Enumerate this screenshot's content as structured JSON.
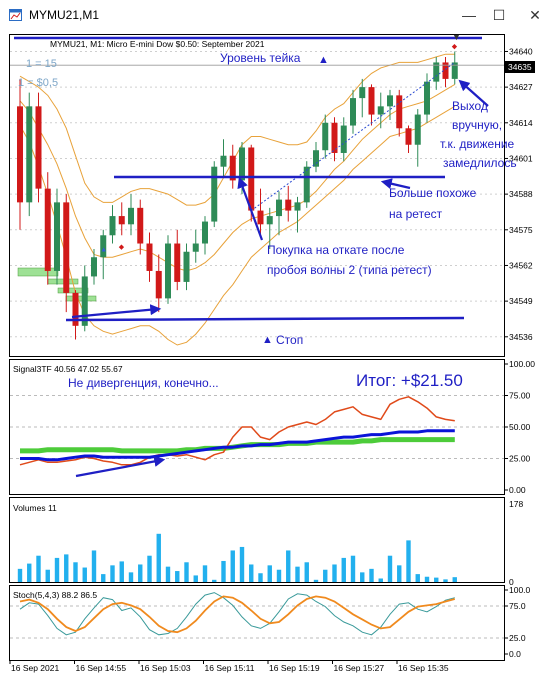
{
  "window": {
    "title": "MYMU21,M1",
    "controls": [
      "minimize-icon",
      "maximize-icon",
      "close-icon"
    ]
  },
  "main_panel": {
    "info": "MYMU21, M1:  Micro E-mini Dow $0.50: September 2021",
    "label_1": "1 = 15",
    "label_2": "1 = $0,5",
    "current_price": "34635",
    "price_ticks": [
      "34640",
      "34627",
      "34614",
      "34601",
      "34588",
      "34575",
      "34562",
      "34549",
      "34536"
    ],
    "annotations": {
      "take_level": "Уровень тейка",
      "exit_line1": "Выход",
      "exit_line2": "вручную,",
      "exit_line3": "т.к. движение",
      "exit_line4": "замедлилось",
      "retest_line1": "Больше похоже",
      "retest_line2": "на ретест",
      "buy_line1": "Покупка на откате после",
      "buy_line2": "пробоя волны 2 (типа ретест)",
      "stop": "Стоп"
    }
  },
  "signal_panel": {
    "info": "Signal3TF 40.56 47.02 55.67",
    "ticks": [
      "100.00",
      "75.00",
      "50.00",
      "25.00",
      "0.00"
    ],
    "note": "Не дивергенция, конечно...",
    "result": "Итог: +$21.50"
  },
  "volume_panel": {
    "info": "Volumes 11",
    "ticks": [
      "178",
      "0"
    ]
  },
  "stoch_panel": {
    "info": "Stoch(5,4,3) 88.2 86.5",
    "ticks": [
      "100.0",
      "75.0",
      "25.0",
      "0.0"
    ]
  },
  "time_axis": [
    "16 Sep 2021",
    "16 Sep 14:55",
    "16 Sep 15:03",
    "16 Sep 15:11",
    "16 Sep 15:19",
    "16 Sep 15:27",
    "16 Sep 15:35"
  ],
  "colors": {
    "bull_candle": "#2e8b57",
    "bear_candle": "#d11919",
    "bollinger": "#e8a23a",
    "annotation_blue": "#1f1fc4",
    "signal_red": "#e04a1a",
    "signal_blue": "#0a14d8",
    "signal_green": "#4dcc3a",
    "volume_bar": "#22b0ee",
    "stoch_main": "#3a9a9a",
    "stoch_signal": "#f08a1e"
  },
  "chart_data": [
    {
      "type": "candlestick",
      "title": "MYMU21, M1:  Micro E-mini Dow $0.50: September 2021",
      "ylim": [
        34529,
        34646
      ],
      "ohlc": [
        [
          34620,
          34630,
          34575,
          34585
        ],
        [
          34585,
          34625,
          34580,
          34620
        ],
        [
          34620,
          34625,
          34585,
          34590
        ],
        [
          34590,
          34596,
          34555,
          34560
        ],
        [
          34560,
          34590,
          34555,
          34585
        ],
        [
          34585,
          34588,
          34545,
          34552
        ],
        [
          34552,
          34553,
          34535,
          34540
        ],
        [
          34540,
          34562,
          34538,
          34558
        ],
        [
          34558,
          34568,
          34555,
          34565
        ],
        [
          34565,
          34575,
          34557,
          34573
        ],
        [
          34573,
          34584,
          34570,
          34580
        ],
        [
          34580,
          34585,
          34573,
          34577
        ],
        [
          34577,
          34588,
          34573,
          34583
        ],
        [
          34583,
          34586,
          34566,
          34570
        ],
        [
          34570,
          34574,
          34556,
          34560
        ],
        [
          34560,
          34566,
          34545,
          34550
        ],
        [
          34550,
          34573,
          34548,
          34570
        ],
        [
          34570,
          34575,
          34553,
          34556
        ],
        [
          34556,
          34570,
          34553,
          34567
        ],
        [
          34567,
          34575,
          34563,
          34570
        ],
        [
          34570,
          34580,
          34566,
          34578
        ],
        [
          34578,
          34600,
          34576,
          34598
        ],
        [
          34598,
          34608,
          34594,
          34602
        ],
        [
          34602,
          34606,
          34590,
          34593
        ],
        [
          34593,
          34607,
          34588,
          34605
        ],
        [
          34605,
          34606,
          34578,
          34582
        ],
        [
          34582,
          34590,
          34573,
          34577
        ],
        [
          34577,
          34583,
          34568,
          34580
        ],
        [
          34580,
          34589,
          34573,
          34586
        ],
        [
          34586,
          34591,
          34578,
          34582
        ],
        [
          34582,
          34587,
          34574,
          34585
        ],
        [
          34585,
          34600,
          34583,
          34598
        ],
        [
          34598,
          34607,
          34596,
          34604
        ],
        [
          34604,
          34617,
          34601,
          34614
        ],
        [
          34614,
          34616,
          34600,
          34603
        ],
        [
          34603,
          34616,
          34600,
          34613
        ],
        [
          34613,
          34626,
          34610,
          34623
        ],
        [
          34623,
          34630,
          34616,
          34627
        ],
        [
          34627,
          34628,
          34613,
          34617
        ],
        [
          34617,
          34625,
          34612,
          34620
        ],
        [
          34620,
          34626,
          34615,
          34624
        ],
        [
          34624,
          34626,
          34609,
          34612
        ],
        [
          34612,
          34613,
          34603,
          34606
        ],
        [
          34606,
          34619,
          34598,
          34617
        ],
        [
          34617,
          34632,
          34614,
          34629
        ],
        [
          34629,
          34638,
          34626,
          34636
        ],
        [
          34636,
          34638,
          34627,
          34630
        ],
        [
          34630,
          34640,
          34628,
          34636
        ]
      ],
      "bollinger_upper": [
        34631,
        34629,
        34627,
        34624,
        34619,
        34612,
        34602,
        34592,
        34587,
        34585,
        34585,
        34587,
        34589,
        34590,
        34590,
        34589,
        34588,
        34586,
        34584,
        34584,
        34585,
        34588,
        34594,
        34600,
        34606,
        34609,
        34609,
        34608,
        34607,
        34606,
        34606,
        34607,
        34611,
        34616,
        34619,
        34621,
        34625,
        34629,
        34632,
        34634,
        34635,
        34636,
        34636,
        34636,
        34637,
        34638,
        34639,
        34639
      ],
      "bollinger_middle": [
        34622,
        34618,
        34612,
        34606,
        34599,
        34590,
        34580,
        34572,
        34566,
        34565,
        34565,
        34566,
        34567,
        34568,
        34567,
        34565,
        34563,
        34561,
        34560,
        34561,
        34563,
        34566,
        34570,
        34574,
        34577,
        34579,
        34580,
        34581,
        34582,
        34583,
        34584,
        34586,
        34589,
        34593,
        34597,
        34600,
        34604,
        34608,
        34611,
        34614,
        34617,
        34619,
        34620,
        34621,
        34622,
        34624,
        34626,
        34628
      ],
      "bollinger_lower": [
        34613,
        34607,
        34598,
        34588,
        34577,
        34565,
        34552,
        34544,
        34540,
        34538,
        34537,
        34538,
        34539,
        34540,
        34540,
        34538,
        34535,
        34533,
        34534,
        34537,
        34541,
        34546,
        34551,
        34555,
        34560,
        34565,
        34568,
        34571,
        34574,
        34576,
        34578,
        34581,
        34584,
        34587,
        34590,
        34593,
        34597,
        34600,
        34603,
        34606,
        34609,
        34610,
        34611,
        34612,
        34614,
        34616,
        34618,
        34620
      ]
    },
    {
      "type": "line",
      "title": "Signal3TF 40.56 47.02 55.67",
      "ylim": [
        0,
        100
      ],
      "series": [
        {
          "name": "",
          "values": [
            20,
            22,
            24,
            22,
            22,
            23,
            24,
            26,
            25,
            23,
            22,
            20,
            20,
            22,
            26,
            28,
            28,
            27,
            28,
            26,
            24,
            28,
            30,
            42,
            50,
            50,
            42,
            40,
            46,
            50,
            52,
            54,
            52,
            56,
            62,
            64,
            66,
            60,
            58,
            56,
            68,
            72,
            74,
            70,
            65,
            58,
            56,
            55
          ]
        },
        {
          "name": "",
          "values": [
            25,
            25,
            25,
            24,
            24,
            25,
            26,
            27,
            27,
            26,
            26,
            26,
            26,
            26,
            26,
            27,
            28,
            29,
            30,
            31,
            32,
            33,
            34,
            34,
            35,
            35,
            36,
            36,
            37,
            38,
            38,
            38,
            39,
            40,
            41,
            42,
            42,
            43,
            44,
            44,
            45,
            46,
            46,
            46,
            47,
            47,
            47,
            47
          ]
        },
        {
          "name": "",
          "values": [
            31,
            31,
            31,
            32,
            32,
            32,
            32,
            32,
            32,
            32,
            32,
            31,
            31,
            31,
            31,
            31,
            31,
            31,
            32,
            32,
            33,
            33,
            33,
            34,
            35,
            36,
            36,
            36,
            36,
            37,
            37,
            37,
            38,
            38,
            38,
            38,
            38,
            39,
            39,
            40,
            40,
            40,
            40,
            40,
            40,
            40,
            40,
            40
          ]
        }
      ]
    },
    {
      "type": "bar",
      "title": "Volumes 11",
      "ylim": [
        0,
        178
      ],
      "values": [
        30,
        42,
        60,
        28,
        55,
        63,
        45,
        33,
        72,
        18,
        38,
        47,
        22,
        40,
        60,
        110,
        35,
        25,
        45,
        15,
        38,
        5,
        48,
        72,
        80,
        40,
        20,
        38,
        28,
        72,
        35,
        45,
        5,
        28,
        40,
        55,
        60,
        22,
        30,
        8,
        60,
        38,
        95,
        18,
        12,
        10,
        6,
        11
      ]
    },
    {
      "type": "line",
      "title": "Stoch(5,4,3) 88.2 86.5",
      "ylim": [
        0,
        100
      ],
      "series": [
        {
          "name": "",
          "values": [
            70,
            80,
            78,
            60,
            40,
            30,
            34,
            55,
            72,
            88,
            85,
            68,
            72,
            58,
            38,
            30,
            32,
            40,
            58,
            78,
            92,
            96,
            88,
            76,
            58,
            44,
            40,
            48,
            66,
            86,
            94,
            92,
            82,
            74,
            60,
            50,
            44,
            34,
            30,
            42,
            62,
            78,
            80,
            70,
            66,
            74,
            84,
            88
          ]
        },
        {
          "name": "",
          "values": [
            82,
            85,
            80,
            70,
            55,
            42,
            36,
            42,
            56,
            70,
            78,
            80,
            76,
            70,
            58,
            44,
            36,
            34,
            40,
            52,
            68,
            82,
            90,
            88,
            80,
            68,
            55,
            48,
            50,
            62,
            76,
            86,
            90,
            88,
            82,
            72,
            62,
            54,
            46,
            40,
            42,
            54,
            66,
            74,
            76,
            78,
            82,
            86
          ]
        }
      ]
    }
  ]
}
